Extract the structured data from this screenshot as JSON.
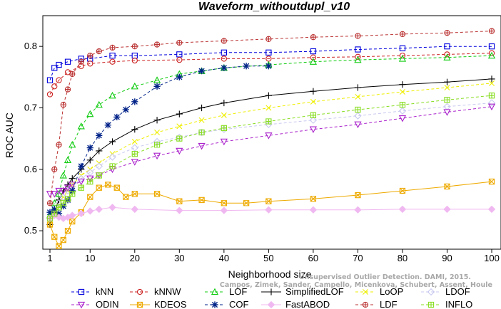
{
  "chart_data": {
    "type": "line",
    "title": "Waveform_withoutdupl_v10",
    "xlabel": "Neighborhood size",
    "ylabel": "ROC AUC",
    "xlim": [
      1,
      100
    ],
    "ylim": [
      0.47,
      0.85
    ],
    "xticks": [
      1,
      10,
      20,
      30,
      40,
      50,
      60,
      70,
      80,
      90,
      100
    ],
    "yticks": [
      0.5,
      0.6,
      0.7,
      0.8
    ],
    "grid": false,
    "legend_position": "bottom",
    "credit_lines": [
      "Unsupervised Outlier Detection. DAMI, 2015.",
      "Campos, Zimek, Sander, Campello, Micenkova, Schubert, Assent, Houle"
    ],
    "series": [
      {
        "name": "kNN",
        "color": "#0000dd",
        "marker": "square",
        "dash": "dash",
        "x": [
          1,
          2,
          3,
          5,
          8,
          10,
          15,
          20,
          30,
          40,
          50,
          60,
          70,
          80,
          90,
          100
        ],
        "y": [
          0.745,
          0.765,
          0.77,
          0.775,
          0.78,
          0.78,
          0.785,
          0.785,
          0.787,
          0.79,
          0.79,
          0.792,
          0.795,
          0.797,
          0.8,
          0.8
        ]
      },
      {
        "name": "kNNW",
        "color": "#cc2222",
        "marker": "circle",
        "dash": "dash",
        "x": [
          1,
          2,
          3,
          5,
          8,
          10,
          15,
          20,
          30,
          40,
          50,
          60,
          70,
          80,
          90,
          100
        ],
        "y": [
          0.722,
          0.735,
          0.745,
          0.758,
          0.768,
          0.772,
          0.775,
          0.777,
          0.778,
          0.78,
          0.78,
          0.782,
          0.783,
          0.785,
          0.787,
          0.789
        ]
      },
      {
        "name": "LOF",
        "color": "#11cc11",
        "marker": "triangle",
        "dash": "dash",
        "x": [
          1,
          2,
          3,
          4,
          5,
          6,
          8,
          10,
          12,
          15,
          20,
          25,
          30,
          35,
          40,
          50,
          60,
          70,
          80,
          90,
          100
        ],
        "y": [
          0.525,
          0.545,
          0.56,
          0.59,
          0.615,
          0.64,
          0.67,
          0.69,
          0.705,
          0.72,
          0.735,
          0.745,
          0.755,
          0.76,
          0.765,
          0.77,
          0.775,
          0.778,
          0.78,
          0.782,
          0.785
        ]
      },
      {
        "name": "SimplifiedLOF",
        "color": "#000000",
        "marker": "plus",
        "dash": "solid",
        "x": [
          1,
          2,
          3,
          4,
          5,
          6,
          8,
          10,
          12,
          15,
          20,
          25,
          30,
          35,
          40,
          50,
          60,
          70,
          80,
          90,
          100
        ],
        "y": [
          0.51,
          0.53,
          0.55,
          0.565,
          0.575,
          0.585,
          0.6,
          0.615,
          0.63,
          0.645,
          0.665,
          0.68,
          0.69,
          0.7,
          0.708,
          0.72,
          0.727,
          0.733,
          0.738,
          0.742,
          0.747
        ]
      },
      {
        "name": "LoOP",
        "color": "#eeee00",
        "marker": "x",
        "dash": "dash",
        "x": [
          1,
          2,
          3,
          4,
          5,
          6,
          8,
          10,
          12,
          15,
          20,
          25,
          30,
          35,
          40,
          50,
          60,
          70,
          80,
          90,
          100
        ],
        "y": [
          0.51,
          0.525,
          0.54,
          0.555,
          0.565,
          0.575,
          0.59,
          0.6,
          0.61,
          0.625,
          0.645,
          0.66,
          0.67,
          0.68,
          0.688,
          0.7,
          0.71,
          0.718,
          0.726,
          0.733,
          0.74
        ]
      },
      {
        "name": "LDOF",
        "color": "#c8c8f0",
        "marker": "diamond",
        "dash": "dash",
        "x": [
          1,
          2,
          3,
          4,
          5,
          6,
          8,
          10,
          12,
          15,
          20,
          25,
          30,
          35,
          40,
          50,
          60,
          70,
          80,
          90,
          100
        ],
        "y": [
          0.52,
          0.53,
          0.545,
          0.555,
          0.565,
          0.572,
          0.585,
          0.595,
          0.605,
          0.62,
          0.635,
          0.645,
          0.652,
          0.66,
          0.665,
          0.673,
          0.68,
          0.687,
          0.695,
          0.702,
          0.708
        ]
      },
      {
        "name": "ODIN",
        "color": "#aa22cc",
        "marker": "triangle-down",
        "dash": "dash",
        "x": [
          1,
          2,
          3,
          4,
          5,
          6,
          8,
          10,
          12,
          15,
          20,
          25,
          30,
          35,
          40,
          50,
          60,
          70,
          80,
          90,
          100
        ],
        "y": [
          0.56,
          0.56,
          0.565,
          0.565,
          0.57,
          0.575,
          0.58,
          0.585,
          0.59,
          0.6,
          0.612,
          0.622,
          0.63,
          0.638,
          0.645,
          0.655,
          0.665,
          0.673,
          0.683,
          0.693,
          0.702
        ]
      },
      {
        "name": "KDEOS",
        "color": "#eeaa00",
        "marker": "square-x",
        "dash": "solid",
        "x": [
          1,
          2,
          3,
          4,
          5,
          6,
          8,
          10,
          12,
          14,
          16,
          18,
          20,
          25,
          30,
          35,
          40,
          45,
          50,
          60,
          70,
          80,
          90,
          100
        ],
        "y": [
          0.51,
          0.49,
          0.475,
          0.485,
          0.5,
          0.515,
          0.53,
          0.555,
          0.57,
          0.575,
          0.57,
          0.555,
          0.56,
          0.56,
          0.548,
          0.55,
          0.545,
          0.545,
          0.548,
          0.552,
          0.558,
          0.565,
          0.572,
          0.58
        ]
      },
      {
        "name": "COF",
        "color": "#002288",
        "marker": "star",
        "dash": "dash",
        "x": [
          1,
          2,
          3,
          4,
          5,
          6,
          8,
          10,
          12,
          14,
          16,
          18,
          20,
          25,
          30,
          35,
          40,
          45,
          50
        ],
        "y": [
          0.53,
          0.535,
          0.528,
          0.54,
          0.55,
          0.565,
          0.605,
          0.635,
          0.655,
          0.672,
          0.685,
          0.697,
          0.71,
          0.735,
          0.75,
          0.76,
          0.765,
          0.768,
          0.768
        ]
      },
      {
        "name": "FastABOD",
        "color": "#f0b8f0",
        "marker": "diamond-filled",
        "dash": "solid",
        "x": [
          1,
          2,
          3,
          4,
          5,
          6,
          8,
          10,
          12,
          15,
          20,
          30,
          40,
          50,
          60,
          70,
          80,
          90,
          100
        ],
        "y": [
          0.52,
          0.525,
          0.522,
          0.52,
          0.522,
          0.525,
          0.528,
          0.532,
          0.535,
          0.538,
          0.535,
          0.533,
          0.533,
          0.534,
          0.534,
          0.534,
          0.535,
          0.535,
          0.535
        ]
      },
      {
        "name": "LDF",
        "color": "#bb3333",
        "marker": "circle-plus",
        "dash": "dash",
        "x": [
          1,
          2,
          3,
          4,
          5,
          6,
          8,
          10,
          12,
          15,
          20,
          25,
          30,
          40,
          50,
          60,
          70,
          80,
          90,
          100
        ],
        "y": [
          0.545,
          0.6,
          0.64,
          0.705,
          0.73,
          0.755,
          0.775,
          0.785,
          0.792,
          0.798,
          0.8,
          0.803,
          0.806,
          0.809,
          0.812,
          0.815,
          0.817,
          0.82,
          0.822,
          0.825
        ]
      },
      {
        "name": "INFLO",
        "color": "#88dd22",
        "marker": "square-cross",
        "dash": "dash",
        "x": [
          1,
          2,
          3,
          4,
          5,
          6,
          8,
          10,
          12,
          15,
          20,
          25,
          30,
          35,
          40,
          50,
          60,
          70,
          80,
          90,
          100
        ],
        "y": [
          0.52,
          0.528,
          0.538,
          0.545,
          0.552,
          0.56,
          0.57,
          0.58,
          0.59,
          0.605,
          0.625,
          0.64,
          0.65,
          0.66,
          0.667,
          0.678,
          0.688,
          0.697,
          0.705,
          0.713,
          0.72
        ]
      }
    ]
  }
}
